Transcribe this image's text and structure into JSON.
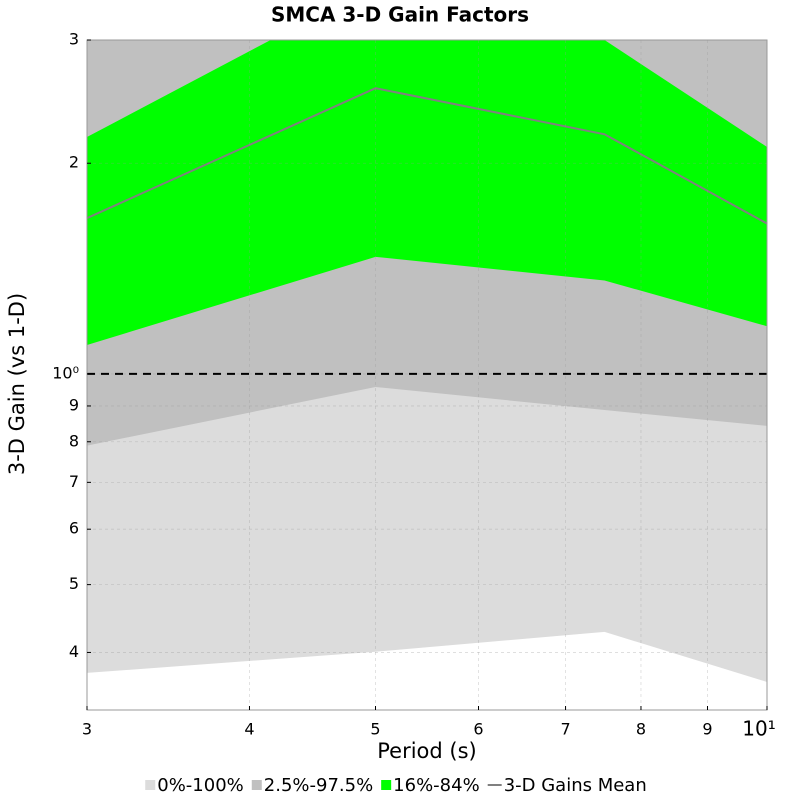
{
  "chart_data": {
    "type": "band",
    "title": "SMCA 3-D Gain Factors",
    "x_label": "Period (s)",
    "y_label": "3-D Gain (vs 1-D)",
    "x": [
      3,
      5,
      7.5,
      10
    ],
    "xscale": "log",
    "yscale": "log",
    "xlim": [
      3,
      10
    ],
    "ylim": [
      0.331,
      3
    ],
    "xticks": [
      3,
      4,
      5,
      6,
      7,
      8,
      9,
      {
        "value": 10,
        "label": "10¹"
      }
    ],
    "yticks": [
      {
        "value": 0.4,
        "label": "4"
      },
      {
        "value": 0.5,
        "label": "5"
      },
      {
        "value": 0.6,
        "label": "6"
      },
      {
        "value": 0.7,
        "label": "7"
      },
      {
        "value": 0.8,
        "label": "8"
      },
      {
        "value": 0.9,
        "label": "9"
      },
      {
        "value": 1,
        "label": "10⁰"
      },
      2,
      3
    ],
    "grid": true,
    "reference_line": 1,
    "legend": "bottom",
    "series": [
      {
        "name": "0%-100%",
        "color": "#dcdcdc",
        "lower": [
          0.374,
          0.401,
          0.428,
          0.363
        ],
        "upper": [
          5,
          6,
          5.5,
          4
        ]
      },
      {
        "name": "2.5%-97.5%",
        "color": "#c0c0c0",
        "lower": [
          0.79,
          0.958,
          0.888,
          0.843
        ],
        "upper": [
          3.5,
          5,
          4.5,
          3.3
        ]
      },
      {
        "name": "16%-84%",
        "color": "#00ff00",
        "lower": [
          1.1,
          1.47,
          1.36,
          1.17
        ],
        "upper": [
          2.18,
          3.6,
          3.0,
          2.11
        ]
      },
      {
        "name": "3-D Gains Mean",
        "color": "#808080",
        "values": [
          1.67,
          2.56,
          2.2,
          1.64
        ]
      }
    ]
  }
}
